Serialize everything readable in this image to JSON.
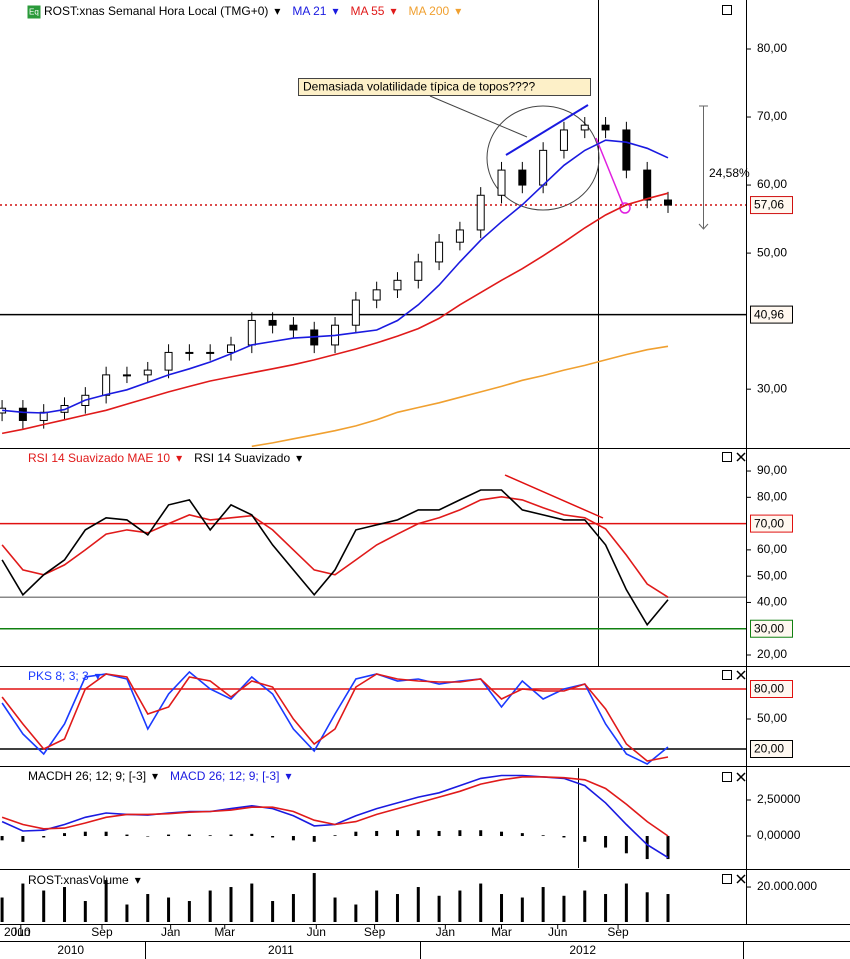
{
  "chart_data": [
    {
      "type": "candlestick",
      "title": "ROST:xnas Semanal Hora Local (TMG+0)",
      "open": [
        26.5,
        27.2,
        25.4,
        26.6,
        27.6,
        29.1,
        32.1,
        32.1,
        32.8,
        35.4,
        35.4,
        35.4,
        36.5,
        40.1,
        39.4,
        38.7,
        36.5,
        39.4,
        43.1,
        44.6,
        46.0,
        48.7,
        51.6,
        53.4,
        58.5,
        62.2,
        60.0,
        65.1,
        68.1,
        68.8,
        68.1,
        62.2,
        57.8
      ],
      "high": [
        28.4,
        28.4,
        27.8,
        28.8,
        30.3,
        33.3,
        33.3,
        34.0,
        36.6,
        36.6,
        36.6,
        37.7,
        41.3,
        41.3,
        40.6,
        39.9,
        40.6,
        44.3,
        45.8,
        47.2,
        49.9,
        52.8,
        54.6,
        59.7,
        63.4,
        63.4,
        66.3,
        69.3,
        70.0,
        70.0,
        69.3,
        63.4,
        59.0
      ],
      "low": [
        25.3,
        24.2,
        24.2,
        25.4,
        26.4,
        27.9,
        30.9,
        30.9,
        31.6,
        34.2,
        34.2,
        34.2,
        35.3,
        38.2,
        37.5,
        35.3,
        35.3,
        38.2,
        41.9,
        43.4,
        44.8,
        47.5,
        50.4,
        52.2,
        57.3,
        58.8,
        58.8,
        63.9,
        66.9,
        66.9,
        61.0,
        56.6,
        55.9
      ],
      "close": [
        27.2,
        25.4,
        26.6,
        27.6,
        29.1,
        32.1,
        32.1,
        32.8,
        35.4,
        35.4,
        35.4,
        36.5,
        40.1,
        39.4,
        38.7,
        36.5,
        39.4,
        43.1,
        44.6,
        46.0,
        48.7,
        51.6,
        53.4,
        58.5,
        62.2,
        60.0,
        65.1,
        68.1,
        68.8,
        68.1,
        62.2,
        57.8,
        57.06
      ],
      "series": [
        {
          "name": "MA 21",
          "color": "#1a1ae0",
          "values": [
            26.9,
            26.6,
            26.5,
            27.0,
            28.4,
            29.2,
            29.9,
            31.0,
            32.1,
            33.0,
            34.0,
            35.2,
            36.5,
            37.0,
            37.5,
            37.7,
            37.9,
            38.3,
            38.7,
            40.1,
            42.4,
            45.3,
            48.7,
            51.9,
            54.6,
            57.1,
            60.0,
            62.9,
            65.1,
            66.6,
            66.3,
            65.4,
            64.0
          ]
        },
        {
          "name": "MA 55",
          "color": "#e01a1a",
          "values": [
            23.5,
            24.1,
            24.8,
            25.5,
            26.2,
            26.9,
            27.8,
            28.7,
            29.6,
            30.4,
            31.2,
            31.8,
            32.4,
            33.0,
            33.6,
            34.3,
            35.1,
            35.9,
            36.8,
            37.8,
            38.9,
            40.4,
            42.4,
            44.2,
            46.0,
            47.7,
            49.6,
            51.6,
            53.7,
            55.6,
            57.1,
            58.0,
            58.8
          ]
        },
        {
          "name": "MA 200",
          "color": "#f0a030",
          "values": [
            null,
            null,
            null,
            null,
            null,
            null,
            null,
            null,
            null,
            null,
            null,
            null,
            21.6,
            22.1,
            22.7,
            23.3,
            23.9,
            24.6,
            25.5,
            26.6,
            27.3,
            28.0,
            28.8,
            29.6,
            30.4,
            31.3,
            32.0,
            32.8,
            33.5,
            34.3,
            35.1,
            35.8,
            36.3
          ]
        }
      ],
      "ylim": [
        21.5,
        87.2
      ],
      "yticks": [
        {
          "value": 30,
          "label": "30,00"
        },
        {
          "value": 50,
          "label": "50,00"
        },
        {
          "value": 60,
          "label": "60,00"
        },
        {
          "value": 70,
          "label": "70,00"
        },
        {
          "value": 80,
          "label": "80,00"
        }
      ],
      "reference_lines": [
        {
          "value": 40.96,
          "label": "40,96",
          "color": "#000000"
        },
        {
          "value": 57.06,
          "label": "57,06",
          "color": "#d01010",
          "dotted": true
        }
      ],
      "annotations": [
        "Demasiada volatilidade típica de topos????",
        "24,58%"
      ]
    },
    {
      "type": "line",
      "series": [
        {
          "name": "RSI 14 Suavizado MAE 10",
          "color": "#e01a1a",
          "values": [
            61.9,
            52.4,
            50.5,
            54.3,
            60.0,
            66.0,
            67.6,
            66.5,
            70.0,
            73.3,
            71.4,
            72.2,
            73.0,
            67.6,
            60.0,
            52.4,
            50.5,
            56.2,
            61.9,
            66.0,
            70.0,
            72.2,
            75.2,
            79.0,
            80.2,
            79.0,
            76.0,
            73.3,
            72.2,
            68.0,
            58.0,
            47.0,
            42.0
          ]
        },
        {
          "name": "RSI 14 Suavizado",
          "color": "#000000",
          "values": [
            56.2,
            42.9,
            50.5,
            56.2,
            67.6,
            72.2,
            71.4,
            65.7,
            77.1,
            79.0,
            67.6,
            77.1,
            73.3,
            61.9,
            52.4,
            42.9,
            52.4,
            67.6,
            69.5,
            71.4,
            75.2,
            75.2,
            79.0,
            82.8,
            82.8,
            75.2,
            73.3,
            71.4,
            71.4,
            61.9,
            44.8,
            31.5,
            41.0
          ]
        }
      ],
      "ylim": [
        16.2,
        98
      ],
      "yticks": [
        {
          "value": 20,
          "label": "20,00"
        },
        {
          "value": 40,
          "label": "40,00"
        },
        {
          "value": 50,
          "label": "50,00"
        },
        {
          "value": 60,
          "label": "60,00"
        },
        {
          "value": 80,
          "label": "80,00"
        },
        {
          "value": 90,
          "label": "90,00"
        }
      ],
      "reference_lines": [
        {
          "value": 70,
          "label": "70,00",
          "color": "#e01010"
        },
        {
          "value": 30,
          "label": "30,00",
          "color": "#108010"
        },
        {
          "value": 42,
          "color": "#888888"
        }
      ]
    },
    {
      "type": "line",
      "series": [
        {
          "name": "PKS 8; 3; 3",
          "color": "#1a3aff",
          "values": [
            66,
            35,
            15,
            45,
            92,
            95,
            90,
            40,
            75,
            97,
            80,
            70,
            92,
            75,
            40,
            18,
            55,
            90,
            95,
            88,
            90,
            85,
            88,
            90,
            62,
            88,
            70,
            80,
            85,
            45,
            15,
            5,
            22
          ]
        },
        {
          "color": "#e01a1a",
          "values": [
            72,
            45,
            20,
            30,
            80,
            95,
            92,
            55,
            62,
            92,
            88,
            72,
            88,
            82,
            50,
            25,
            40,
            82,
            95,
            90,
            88,
            87,
            87,
            90,
            70,
            80,
            78,
            78,
            85,
            60,
            25,
            8,
            12
          ]
        }
      ],
      "ylim": [
        4,
        101
      ],
      "yticks": [
        {
          "value": 50,
          "label": "50,00"
        }
      ],
      "reference_lines": [
        {
          "value": 80,
          "label": "80,00",
          "color": "#e01010"
        },
        {
          "value": 20,
          "label": "20,00",
          "color": "#000000"
        }
      ]
    },
    {
      "type": "line",
      "series": [
        {
          "name": "MACDH 26; 12; 9; [-3]",
          "color": "#000000",
          "kind": "bar",
          "values": [
            -0.3,
            -0.4,
            -0.1,
            0.2,
            0.3,
            0.3,
            0.1,
            0,
            0.1,
            0.1,
            0.05,
            0.1,
            0.15,
            -0.1,
            -0.3,
            -0.4,
            0.05,
            0.3,
            0.35,
            0.4,
            0.4,
            0.35,
            0.4,
            0.4,
            0.3,
            0.2,
            0.05,
            -0.1,
            -0.4,
            -0.8,
            -1.2,
            -1.6,
            -1.6
          ]
        },
        {
          "name": "MACD 26; 12; 9; [-3]",
          "color": "#1a1ae0",
          "values": [
            1.0,
            0.35,
            0.4,
            0.8,
            1.3,
            1.6,
            1.5,
            1.45,
            1.6,
            1.7,
            1.7,
            1.9,
            2.1,
            1.9,
            1.4,
            0.7,
            0.8,
            1.4,
            1.9,
            2.3,
            2.7,
            3.0,
            3.5,
            4.0,
            4.2,
            4.2,
            4.1,
            4.0,
            3.5,
            2.3,
            0.8,
            -0.6,
            -1.5
          ]
        },
        {
          "color": "#e01a1a",
          "values": [
            1.3,
            0.8,
            0.5,
            0.55,
            0.9,
            1.3,
            1.5,
            1.5,
            1.55,
            1.65,
            1.7,
            1.8,
            2.0,
            2.0,
            1.7,
            1.1,
            0.8,
            1.0,
            1.5,
            1.9,
            2.3,
            2.7,
            3.1,
            3.6,
            3.9,
            4.1,
            4.1,
            4.05,
            3.9,
            3.3,
            2.2,
            1.0,
            0.0
          ]
        }
      ],
      "ylim": [
        -2.22,
        4.72
      ],
      "yticks": [
        {
          "value": 0,
          "label": "0,00000"
        },
        {
          "value": 2.5,
          "label": "2,50000"
        }
      ]
    },
    {
      "type": "bar",
      "title": "ROST:xnasVolume",
      "color": "#000000",
      "values": [
        14000000,
        22000000,
        18000000,
        20000000,
        12000000,
        24000000,
        10000000,
        16000000,
        14000000,
        12000000,
        18000000,
        20000000,
        22000000,
        12000000,
        16000000,
        28000000,
        14000000,
        10000000,
        18000000,
        16000000,
        20000000,
        15000000,
        18000000,
        22000000,
        16000000,
        14000000,
        20000000,
        15000000,
        18000000,
        16000000,
        22000000,
        17000000,
        16000000
      ],
      "ylim": [
        0,
        28600000
      ],
      "yticks": [
        {
          "value": 20000000,
          "label": "20.000.000"
        }
      ],
      "xlim": [
        -0.1,
        35.7
      ],
      "start_label": "2010",
      "xticks": [
        {
          "value": 0.9,
          "label": "Jun"
        },
        {
          "value": 4.8,
          "label": "Sep"
        },
        {
          "value": 8.1,
          "label": "Jan"
        },
        {
          "value": 10.7,
          "label": "Mar"
        },
        {
          "value": 15.1,
          "label": "Jun"
        },
        {
          "value": 17.9,
          "label": "Sep"
        },
        {
          "value": 21.3,
          "label": "Jan"
        },
        {
          "value": 24.0,
          "label": "Mar"
        },
        {
          "value": 26.7,
          "label": "Jun"
        },
        {
          "value": 29.6,
          "label": "Sep"
        }
      ],
      "year_ticks": [
        {
          "value": 3.3,
          "label": "2010"
        },
        {
          "value": 13.4,
          "label": "2011"
        },
        {
          "value": 27.9,
          "label": "2012"
        }
      ]
    }
  ]
}
